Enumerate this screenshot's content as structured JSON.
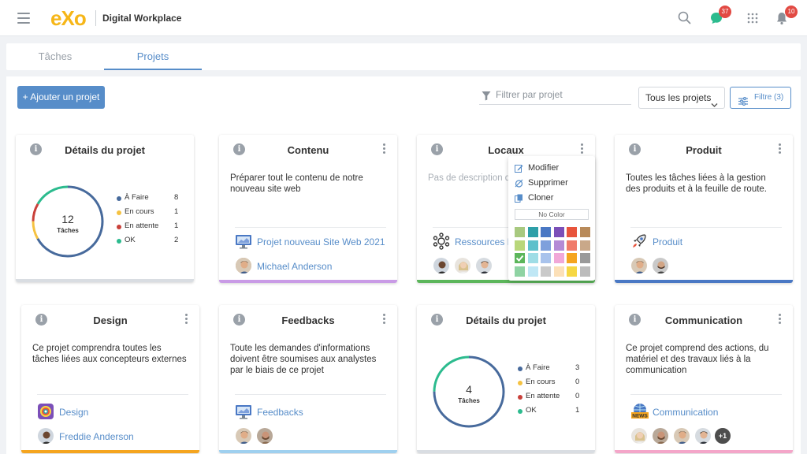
{
  "header": {
    "logo_text": "eXo",
    "app_name": "Digital Workplace",
    "chat_badge": "37",
    "notif_badge": "10"
  },
  "tabs": [
    {
      "label": "Tâches",
      "active": false
    },
    {
      "label": "Projets",
      "active": true
    }
  ],
  "toolbar": {
    "add_project_label": "+  Ajouter un projet",
    "filter_placeholder": "Filtrer par projet",
    "projects_select": "Tous les projets",
    "filter_button": "Filtre (3)"
  },
  "cards": {
    "details1": {
      "title": "Détails du projet",
      "total": "12",
      "total_label": "Tâches",
      "stats": [
        {
          "label": "À Faire",
          "value": 8,
          "color": "#476a9c"
        },
        {
          "label": "En cours",
          "value": 1,
          "color": "#f5c242"
        },
        {
          "label": "En attente",
          "value": 1,
          "color": "#c9403a"
        },
        {
          "label": "OK",
          "value": 2,
          "color": "#2cbb8e"
        }
      ]
    },
    "contenu": {
      "title": "Contenu",
      "description": "Préparer tout le contenu de notre nouveau site web",
      "space": "Projet nouveau Site Web 2021",
      "person": "Michael Anderson",
      "bar_color": "#c99be6"
    },
    "locaux": {
      "title": "Locaux",
      "description": "Pas de description d",
      "space": "Ressources H",
      "bar_color": "#5cb65b"
    },
    "produit": {
      "title": "Produit",
      "description": "Toutes les tâches liées à la gestion des produits et à la feuille de route.",
      "space": "Produit",
      "bar_color": "#4a78c4"
    },
    "design": {
      "title": "Design",
      "description": "Ce projet comprendra toutes les tâches liées aux concepteurs externes",
      "space": "Design",
      "person": "Freddie Anderson",
      "bar_color": "#f5a51f"
    },
    "feedbacks": {
      "title": "Feedbacks",
      "description": "Toute les demandes d'informations doivent être soumises aux analystes par le biais de ce projet",
      "space": "Feedbacks",
      "bar_color": "#9fd0ef"
    },
    "details2": {
      "title": "Détails du projet",
      "total": "4",
      "total_label": "Tâches",
      "stats": [
        {
          "label": "À Faire",
          "value": 3,
          "color": "#476a9c"
        },
        {
          "label": "En cours",
          "value": 0,
          "color": "#f5c242"
        },
        {
          "label": "En attente",
          "value": 0,
          "color": "#c9403a"
        },
        {
          "label": "OK",
          "value": 1,
          "color": "#2cbb8e"
        }
      ]
    },
    "communication": {
      "title": "Communication",
      "description": "Ce projet comprend des actions, du matériel et des travaux liés à la communication",
      "space": "Communication",
      "more_count": "+1",
      "bar_color": "#f4a6c9"
    }
  },
  "menu": {
    "items": [
      "Modifier",
      "Supprimer",
      "Cloner"
    ],
    "no_color": "No Color",
    "colors": [
      [
        "#a8c97f",
        "#2e9fa8",
        "#4a78c4",
        "#7b4fb8",
        "#e8543c",
        "#b88a5a"
      ],
      [
        "#b9d77a",
        "#5cc0cb",
        "#7ea0dc",
        "#b48ad6",
        "#f07b6a",
        "#c9a889"
      ],
      [
        "#5cb65b",
        "#9fdde6",
        "#a9c3ec",
        "#f1a8d8",
        "#f5a51f",
        "#9a9a9a"
      ],
      [
        "#8fd3a3",
        "#bfe7f5",
        "#c9c9c9",
        "#fce0b8",
        "#f6d743",
        "#bcbcbc"
      ]
    ],
    "selected_color": "#5cb65b"
  }
}
